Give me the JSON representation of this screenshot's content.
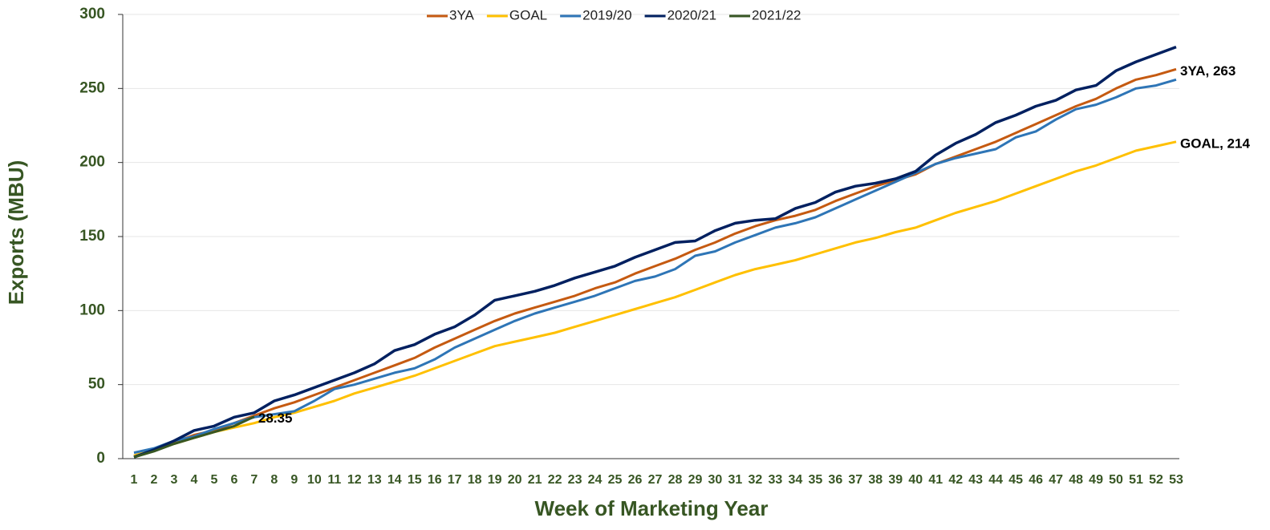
{
  "chart_data": {
    "type": "line",
    "xlabel": "Week of Marketing Year",
    "ylabel": "Exports (MBU)",
    "categories": [
      1,
      2,
      3,
      4,
      5,
      6,
      7,
      8,
      9,
      10,
      11,
      12,
      13,
      14,
      15,
      16,
      17,
      18,
      19,
      20,
      21,
      22,
      23,
      24,
      25,
      26,
      27,
      28,
      29,
      30,
      31,
      32,
      33,
      34,
      35,
      36,
      37,
      38,
      39,
      40,
      41,
      42,
      43,
      44,
      45,
      46,
      47,
      48,
      49,
      50,
      51,
      52,
      53
    ],
    "ylim": [
      0,
      300
    ],
    "yticks": [
      0,
      50,
      100,
      150,
      200,
      250,
      300
    ],
    "grid": true,
    "legend": "top",
    "series": [
      {
        "name": "3YA",
        "color": "#c55a11",
        "values": [
          2,
          6,
          11,
          16,
          19,
          24,
          29,
          34,
          38,
          43,
          48,
          53,
          58,
          63,
          68,
          75,
          81,
          87,
          93,
          98,
          102,
          106,
          110,
          115,
          119,
          125,
          130,
          135,
          141,
          146,
          152,
          157,
          161,
          164,
          168,
          174,
          179,
          184,
          188,
          192,
          199,
          204,
          209,
          214,
          220,
          226,
          232,
          238,
          243,
          250,
          256,
          259,
          263
        ],
        "value_labels": [
          null,
          null,
          null,
          null,
          null,
          null,
          null,
          null,
          null,
          null,
          null,
          null,
          null,
          null,
          null,
          null,
          null,
          null,
          null,
          null,
          null,
          null,
          null,
          null,
          null,
          null,
          null,
          null,
          null,
          null,
          null,
          null,
          null,
          null,
          null,
          null,
          null,
          null,
          null,
          null,
          null,
          null,
          null,
          null,
          null,
          null,
          null,
          null,
          null,
          null,
          null,
          null,
          "3YA, 263"
        ]
      },
      {
        "name": "GOAL",
        "color": "#ffc000",
        "values": [
          2,
          6,
          10,
          14,
          18,
          21,
          24,
          28,
          31,
          35,
          39,
          44,
          48,
          52,
          56,
          61,
          66,
          71,
          76,
          79,
          82,
          85,
          89,
          93,
          97,
          101,
          105,
          109,
          114,
          119,
          124,
          128,
          131,
          134,
          138,
          142,
          146,
          149,
          153,
          156,
          161,
          166,
          170,
          174,
          179,
          184,
          189,
          194,
          198,
          203,
          208,
          211,
          214
        ],
        "value_labels": [
          null,
          null,
          null,
          null,
          null,
          null,
          null,
          null,
          null,
          null,
          null,
          null,
          null,
          null,
          null,
          null,
          null,
          null,
          null,
          null,
          null,
          null,
          null,
          null,
          null,
          null,
          null,
          null,
          null,
          null,
          null,
          null,
          null,
          null,
          null,
          null,
          null,
          null,
          null,
          null,
          null,
          null,
          null,
          null,
          null,
          null,
          null,
          null,
          null,
          null,
          null,
          null,
          "GOAL, 214"
        ]
      },
      {
        "name": "2019/20",
        "color": "#2e75b6",
        "values": [
          4,
          7,
          12,
          15,
          20,
          24,
          28,
          30,
          32,
          39,
          47,
          50,
          54,
          58,
          61,
          67,
          75,
          81,
          87,
          93,
          98,
          102,
          106,
          110,
          115,
          120,
          123,
          128,
          137,
          140,
          146,
          151,
          156,
          159,
          163,
          169,
          175,
          181,
          187,
          193,
          199,
          203,
          206,
          209,
          217,
          221,
          229,
          236,
          239,
          244,
          250,
          252,
          256
        ]
      },
      {
        "name": "2020/21",
        "color": "#002060",
        "values": [
          1,
          6,
          12,
          19,
          22,
          28,
          31,
          39,
          43,
          48,
          53,
          58,
          64,
          73,
          77,
          84,
          89,
          97,
          107,
          110,
          113,
          117,
          122,
          126,
          130,
          136,
          141,
          146,
          147,
          154,
          159,
          161,
          162,
          169,
          173,
          180,
          184,
          186,
          189,
          194,
          205,
          213,
          219,
          227,
          232,
          238,
          242,
          249,
          252,
          262,
          268,
          273,
          278
        ]
      },
      {
        "name": "2021/22",
        "color": "#375623",
        "values": [
          1,
          5,
          10,
          14,
          18,
          22,
          28.35,
          null,
          null,
          null,
          null,
          null,
          null,
          null,
          null,
          null,
          null,
          null,
          null,
          null,
          null,
          null,
          null,
          null,
          null,
          null,
          null,
          null,
          null,
          null,
          null,
          null,
          null,
          null,
          null,
          null,
          null,
          null,
          null,
          null,
          null,
          null,
          null,
          null,
          null,
          null,
          null,
          null,
          null,
          null,
          null,
          null,
          null
        ],
        "value_labels": [
          null,
          null,
          null,
          null,
          null,
          null,
          "28.35",
          null,
          null,
          null,
          null,
          null,
          null,
          null,
          null,
          null,
          null,
          null,
          null,
          null,
          null,
          null,
          null,
          null,
          null,
          null,
          null,
          null,
          null,
          null,
          null,
          null,
          null,
          null,
          null,
          null,
          null,
          null,
          null,
          null,
          null,
          null,
          null,
          null,
          null,
          null,
          null,
          null,
          null,
          null,
          null,
          null,
          null
        ]
      }
    ]
  }
}
